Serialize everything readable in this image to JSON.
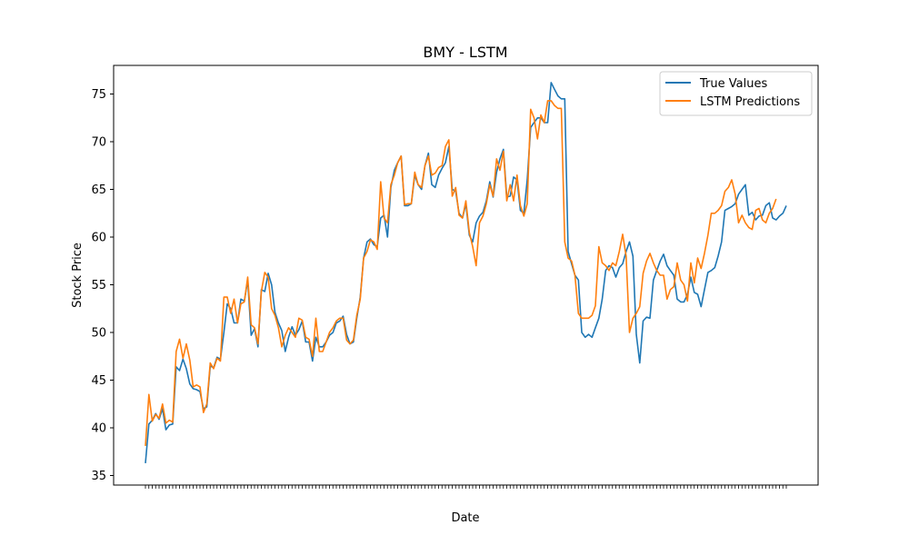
{
  "chart_data": {
    "type": "line",
    "title": "BMY - LSTM",
    "xlabel": "Date",
    "ylabel": "Stock Price",
    "ylim": [
      34.0,
      78.0
    ],
    "yticks": [
      35,
      40,
      45,
      50,
      55,
      60,
      65,
      70,
      75
    ],
    "grid": false,
    "legend_position": "top-right",
    "series": [
      {
        "name": "True Values",
        "color": "#1f77b4",
        "values": [
          36.3,
          40.4,
          40.8,
          41.5,
          40.9,
          42.0,
          39.8,
          40.3,
          40.4,
          46.4,
          46.0,
          47.2,
          46.2,
          44.6,
          44.1,
          44.0,
          43.8,
          42.0,
          42.2,
          46.5,
          46.3,
          47.4,
          47.2,
          50.0,
          53.0,
          52.5,
          51.0,
          51.0,
          53.5,
          53.3,
          55.5,
          49.7,
          50.4,
          48.5,
          54.5,
          54.3,
          56.2,
          55.0,
          52.1,
          51.0,
          50.2,
          48.0,
          49.5,
          50.6,
          49.7,
          50.3,
          51.2,
          49.0,
          49.0,
          47.0,
          49.5,
          48.5,
          48.5,
          49.0,
          49.7,
          50.0,
          51.0,
          51.2,
          51.7,
          49.8,
          48.8,
          49.0,
          51.5,
          53.7,
          57.8,
          59.5,
          59.8,
          59.2,
          59.0,
          62.0,
          62.3,
          60.0,
          65.2,
          67.0,
          67.8,
          68.5,
          63.3,
          63.3,
          63.5,
          66.5,
          65.5,
          65.0,
          67.5,
          68.8,
          65.5,
          65.2,
          66.5,
          67.2,
          67.8,
          69.5,
          65.0,
          64.8,
          62.5,
          62.0,
          63.5,
          60.2,
          59.5,
          61.5,
          62.2,
          62.6,
          63.8,
          65.8,
          64.2,
          66.8,
          68.2,
          69.2,
          64.2,
          64.3,
          66.3,
          66.0,
          62.8,
          62.5,
          66.0,
          71.5,
          72.0,
          72.5,
          72.5,
          72.0,
          72.0,
          76.2,
          75.5,
          74.8,
          74.5,
          74.5,
          58.5,
          57.2,
          56.0,
          55.5,
          50.0,
          49.5,
          49.8,
          49.5,
          50.5,
          51.5,
          53.5,
          56.5,
          57.0,
          56.8,
          55.8,
          56.8,
          57.2,
          58.5,
          59.5,
          58.0,
          49.8,
          46.8,
          51.2,
          51.6,
          51.5,
          55.5,
          56.5,
          57.5,
          58.2,
          57.0,
          56.5,
          56.0,
          53.5,
          53.2,
          53.2,
          54.0,
          55.8,
          54.2,
          54.0,
          52.7,
          54.5,
          56.3,
          56.5,
          56.8,
          58.0,
          59.5,
          62.8,
          63.0,
          63.2,
          63.5,
          64.5,
          65.0,
          65.5,
          62.3,
          62.6,
          61.8,
          62.2,
          62.3,
          63.3,
          63.6,
          62.0,
          61.8,
          62.2,
          62.5,
          63.3
        ]
      },
      {
        "name": "LSTM Predictions",
        "color": "#ff7f0e",
        "values": [
          38.1,
          43.5,
          40.7,
          41.4,
          41.0,
          42.5,
          40.5,
          40.8,
          40.6,
          48.0,
          49.3,
          47.3,
          48.8,
          47.1,
          44.3,
          44.5,
          44.3,
          41.6,
          42.5,
          46.8,
          46.2,
          47.3,
          47.0,
          53.7,
          53.7,
          52.0,
          53.5,
          51.0,
          53.0,
          53.2,
          55.8,
          50.8,
          50.5,
          48.8,
          54.3,
          56.3,
          55.8,
          52.5,
          51.8,
          50.5,
          48.5,
          49.7,
          50.5,
          50.0,
          49.5,
          51.5,
          51.3,
          49.5,
          49.3,
          47.5,
          51.5,
          48.0,
          48.0,
          49.0,
          50.0,
          50.5,
          51.2,
          51.5,
          51.5,
          49.2,
          48.8,
          49.2,
          51.8,
          53.5,
          57.8,
          58.5,
          59.7,
          59.5,
          58.7,
          65.8,
          62.0,
          61.5,
          65.5,
          66.5,
          67.8,
          68.5,
          63.4,
          63.5,
          63.5,
          66.8,
          65.5,
          65.2,
          67.5,
          68.5,
          66.5,
          66.7,
          67.3,
          67.5,
          69.5,
          70.2,
          64.3,
          65.2,
          62.3,
          62.0,
          63.8,
          60.5,
          59.0,
          57.0,
          61.5,
          62.2,
          63.5,
          65.5,
          64.3,
          68.2,
          67.0,
          69.0,
          63.8,
          65.5,
          63.8,
          66.5,
          63.3,
          62.2,
          63.5,
          73.4,
          72.5,
          70.3,
          72.8,
          72.0,
          74.3,
          74.3,
          73.8,
          73.5,
          73.5,
          59.5,
          57.8,
          57.5,
          56.0,
          52.0,
          51.5,
          51.5,
          51.5,
          51.8,
          52.8,
          59.0,
          57.3,
          57.0,
          56.5,
          57.3,
          57.0,
          58.5,
          60.3,
          58.0,
          50.0,
          51.5,
          52.0,
          52.7,
          56.2,
          57.5,
          58.3,
          57.3,
          56.5,
          56.0,
          56.0,
          53.5,
          54.5,
          54.8,
          57.3,
          55.5,
          55.0,
          53.3,
          57.3,
          55.2,
          57.8,
          56.7,
          58.3,
          60.2,
          62.5,
          62.5,
          62.8,
          63.3,
          64.8,
          65.2,
          66.0,
          64.5,
          61.5,
          62.3,
          61.5,
          61.0,
          60.8,
          62.8,
          63.0,
          61.8,
          61.5,
          62.5,
          63.0,
          64.0
        ]
      }
    ]
  }
}
